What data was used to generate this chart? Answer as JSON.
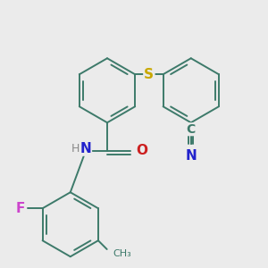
{
  "bg_color": "#ebebeb",
  "bond_color": "#3d7a6a",
  "bond_width": 1.4,
  "S_color": "#c8a800",
  "N_color": "#2222cc",
  "O_color": "#cc2020",
  "F_color": "#cc44cc",
  "C_color": "#3d7a6a",
  "H_color": "#888888",
  "figsize": [
    3.0,
    3.0
  ],
  "dpi": 100,
  "xlim": [
    -0.3,
    3.3
  ],
  "ylim": [
    -1.1,
    2.9
  ]
}
